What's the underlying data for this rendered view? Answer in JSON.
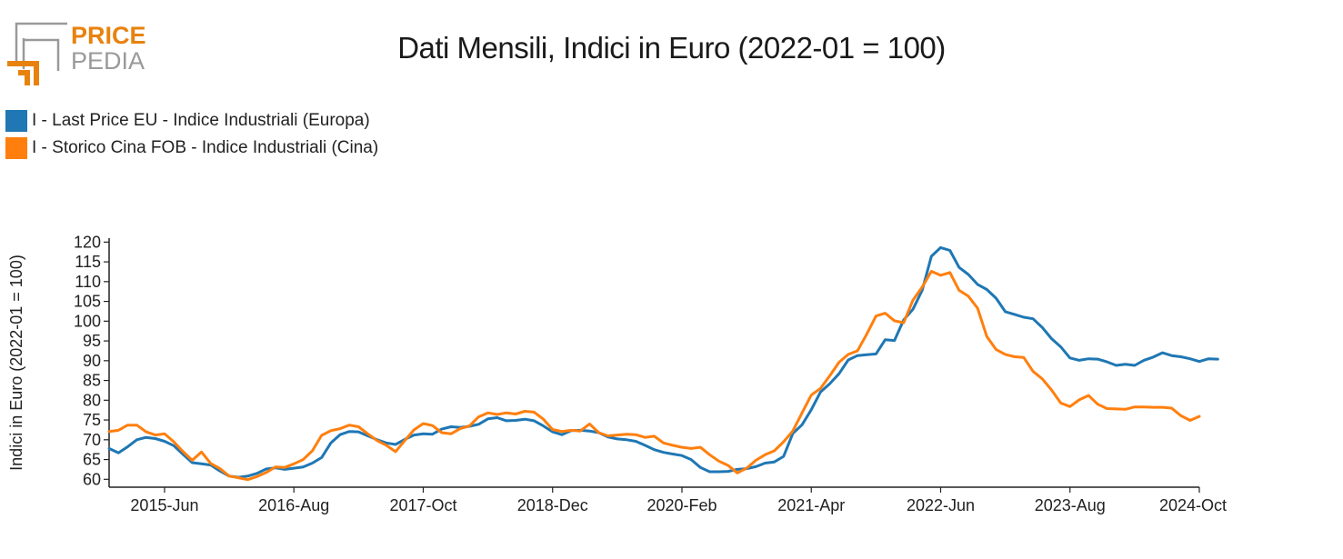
{
  "logo": {
    "line1": "PRICE",
    "line2": "PEDIA",
    "colors": {
      "orange": "#e8820e",
      "grey": "#8a8a8a"
    }
  },
  "chart_data": {
    "type": "line",
    "title": "Dati Mensili, Indici in Euro (2022-01 = 100)",
    "ylabel": "Indici in Euro (2022-01 = 100)",
    "xlabel": "",
    "ylim": [
      58,
      121
    ],
    "yticks": [
      60,
      65,
      70,
      75,
      80,
      85,
      90,
      95,
      100,
      105,
      110,
      115,
      120
    ],
    "xlim": [
      "2014-12",
      "2024-10"
    ],
    "xticks": [
      {
        "date": "2015-06",
        "label": "2015-Jun"
      },
      {
        "date": "2016-08",
        "label": "2016-Aug"
      },
      {
        "date": "2017-10",
        "label": "2017-Oct"
      },
      {
        "date": "2018-12",
        "label": "2018-Dec"
      },
      {
        "date": "2020-02",
        "label": "2020-Feb"
      },
      {
        "date": "2021-04",
        "label": "2021-Apr"
      },
      {
        "date": "2022-06",
        "label": "2022-Jun"
      },
      {
        "date": "2023-08",
        "label": "2023-Aug"
      },
      {
        "date": "2024-10",
        "label": "2024-Oct"
      }
    ],
    "grid": false,
    "legend_position": "top-left",
    "x_start": "2014-12",
    "series": [
      {
        "name": "I - Last Price EU - Indice Industriali (Europa)",
        "color": "#1f77b4",
        "values": [
          67.8,
          66.7,
          68.2,
          70.0,
          70.6,
          70.3,
          69.6,
          68.5,
          66.3,
          64.2,
          63.9,
          63.6,
          62.1,
          60.8,
          60.5,
          60.8,
          61.5,
          62.6,
          62.9,
          62.5,
          62.8,
          63.1,
          64.1,
          65.5,
          69.2,
          71.3,
          72.1,
          72.0,
          71.0,
          70.0,
          69.2,
          68.8,
          70.1,
          71.2,
          71.5,
          71.4,
          72.7,
          73.3,
          73.1,
          73.4,
          73.9,
          75.3,
          75.6,
          74.8,
          74.9,
          75.2,
          74.8,
          73.5,
          72.0,
          71.3,
          72.3,
          72.4,
          72.2,
          71.8,
          70.7,
          70.2,
          70.0,
          69.6,
          68.6,
          67.5,
          66.8,
          66.4,
          66.0,
          65.0,
          63.0,
          61.9,
          61.9,
          62.0,
          62.5,
          62.7,
          63.2,
          64.1,
          64.4,
          65.8,
          71.6,
          73.8,
          77.6,
          82.1,
          84.2,
          86.7,
          90.2,
          91.3,
          91.5,
          91.7,
          95.3,
          95.1,
          100.3,
          103.0,
          107.8,
          116.4,
          118.6,
          117.9,
          113.6,
          111.8,
          109.3,
          108.0,
          105.8,
          102.4,
          101.7,
          101.0,
          100.6,
          98.4,
          95.6,
          93.5,
          90.7,
          90.1,
          90.5,
          90.4,
          89.7,
          88.8,
          89.1,
          88.8,
          90.1,
          90.9,
          92.0,
          91.3,
          91.0,
          90.5,
          89.8,
          90.5,
          90.4
        ]
      },
      {
        "name": "I - Storico Cina FOB - Indice Industriali (Cina)",
        "color": "#ff7f0e",
        "values": [
          72.1,
          72.4,
          73.7,
          73.7,
          72.0,
          71.2,
          71.5,
          69.5,
          67.0,
          64.8,
          66.9,
          64.0,
          62.7,
          60.8,
          60.4,
          59.9,
          60.7,
          61.7,
          63.1,
          63.0,
          63.9,
          65.0,
          67.2,
          71.1,
          72.3,
          72.8,
          73.7,
          73.3,
          71.5,
          69.8,
          68.6,
          67.0,
          69.8,
          72.5,
          74.1,
          73.6,
          71.8,
          71.5,
          72.8,
          73.5,
          75.8,
          76.8,
          76.4,
          76.8,
          76.5,
          77.2,
          77.0,
          75.2,
          72.6,
          72.1,
          72.4,
          72.2,
          74.0,
          71.8,
          71.0,
          71.2,
          71.4,
          71.3,
          70.6,
          70.9,
          69.2,
          68.6,
          68.1,
          67.8,
          68.1,
          66.2,
          64.6,
          63.5,
          61.6,
          62.8,
          64.8,
          66.2,
          67.2,
          69.5,
          72.2,
          76.8,
          81.3,
          83.0,
          86.2,
          89.6,
          91.6,
          92.5,
          96.7,
          101.3,
          102.0,
          100.1,
          99.6,
          105.3,
          108.6,
          112.6,
          111.6,
          112.3,
          107.8,
          106.3,
          103.3,
          96.1,
          92.8,
          91.6,
          91.0,
          90.8,
          87.3,
          85.4,
          82.6,
          79.3,
          78.4,
          80.1,
          81.2,
          79.0,
          77.9,
          77.8,
          77.7,
          78.3,
          78.3,
          78.2,
          78.2,
          78.0,
          76.1,
          74.9,
          75.9
        ]
      }
    ]
  }
}
